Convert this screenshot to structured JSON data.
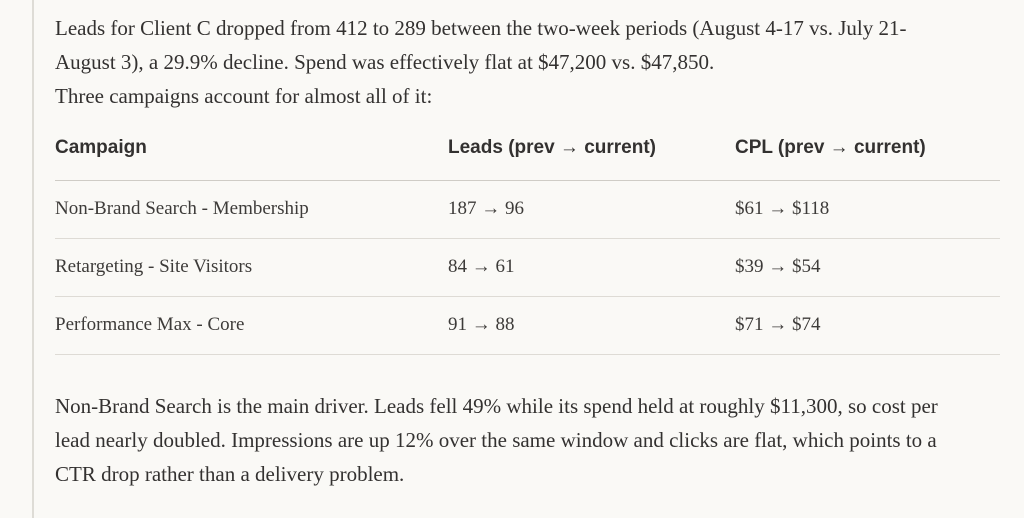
{
  "paragraphs": [
    "Leads for Client C dropped from 412 to 289 between the two-week periods (August 4-17 vs. July 21-August 3), a 29.9% decline. Spend was effectively flat at $47,200 vs. $47,850.",
    "Three campaigns account for almost all of it:",
    "Non-Brand Search is the main driver. Leads fell 49% while its spend held at roughly $11,300, so cost per lead nearly doubled. Impressions are up 12% over the same window and clicks are flat, which points to a CTR drop rather than a delivery problem."
  ],
  "table": {
    "headers": [
      "Campaign",
      "Leads (prev → current)",
      "CPL (prev → current)"
    ],
    "rows": [
      [
        "Non-Brand Search - Membership",
        "187 → 96",
        "$61 → $118"
      ],
      [
        "Retargeting - Site Visitors",
        "84 → 61",
        "$39 → $54"
      ],
      [
        "Performance Max - Core",
        "91 → 88",
        "$71 → $74"
      ]
    ]
  }
}
